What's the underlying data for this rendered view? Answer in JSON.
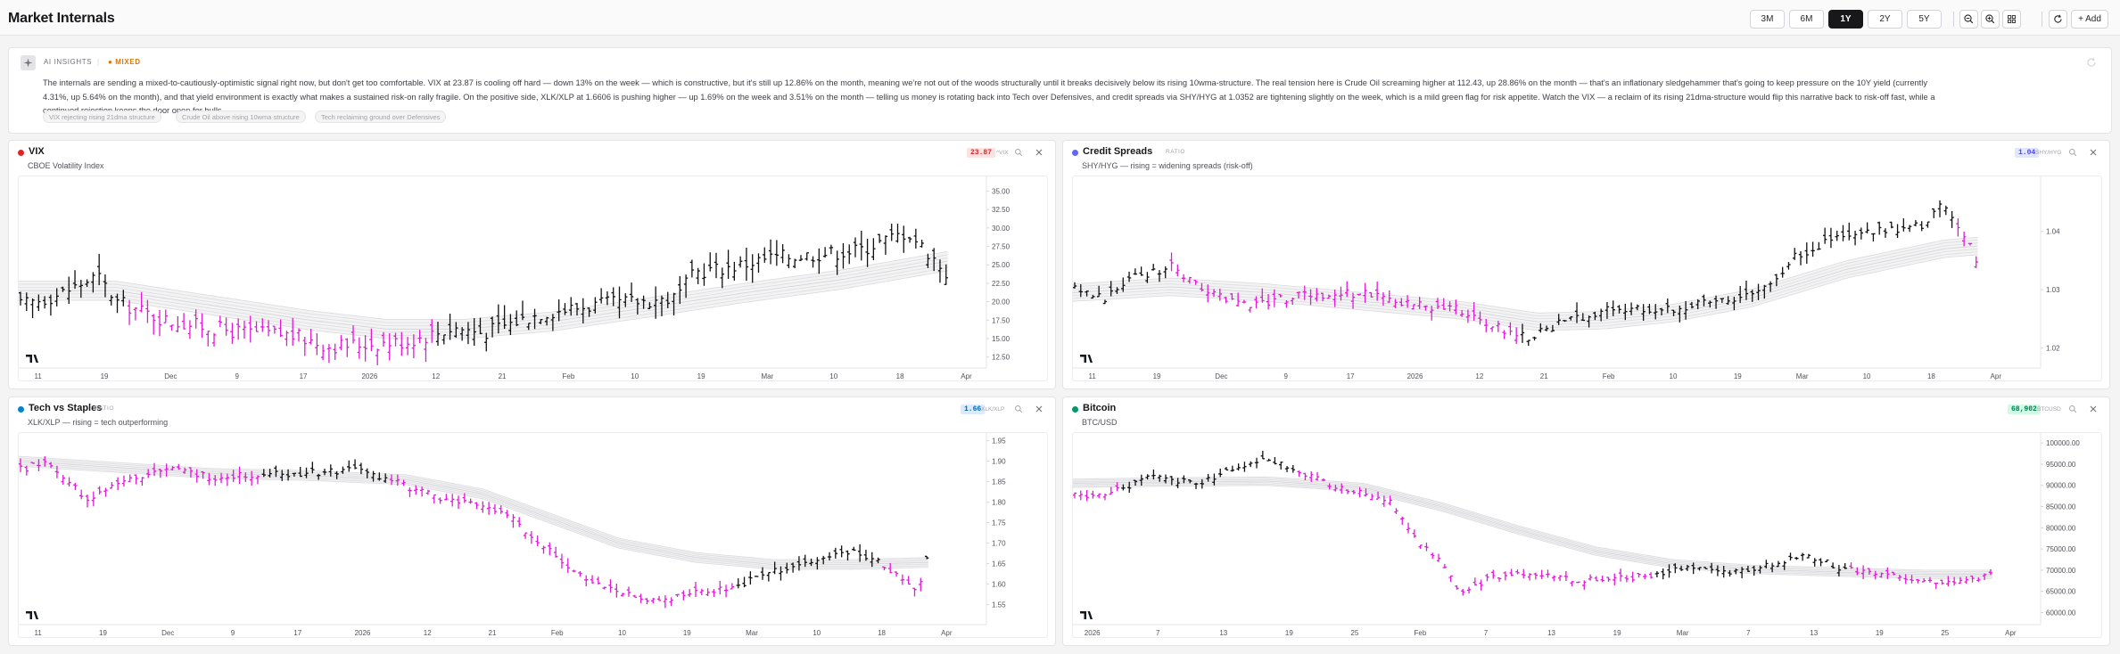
{
  "header": {
    "title": "Market Internals",
    "ranges": [
      "3M",
      "6M",
      "1Y",
      "2Y",
      "5Y"
    ],
    "active_range": "1Y",
    "add_label": "+ Add"
  },
  "insights": {
    "label": "AI INSIGHTS",
    "separator": "|",
    "mixed": "● MIXED",
    "text": "The internals are sending a mixed-to-cautiously-optimistic signal right now, but don't get too comfortable. VIX at 23.87 is cooling off hard — down 13% on the week — which is constructive, but it's still up 12.86% on the month, meaning we're not out of the woods structurally until it breaks decisively below its rising 10wma-structure. The real tension here is Crude Oil screaming higher at 112.43, up 28.86% on the month — that's an inflationary sledgehammer that's going to keep pressure on the 10Y yield (currently 4.31%, up 5.64% on the month), and that yield environment is exactly what makes a sustained risk-on rally fragile. On the positive side, XLK/XLP at 1.6606 is pushing higher — up 1.69% on the week and 3.51% on the month — telling us money is rotating back into Tech over Defensives, and credit spreads via SHY/HYG at 1.0352 are tightening slightly on the week, which is a mild green flag for risk appetite. Watch the VIX — a reclaim of its rising 21dma-structure would flip this narrative back to risk-off fast, while a continued rejection keeps the door open for bulls.",
    "chips": [
      "VIX rejecting rising 21dma structure",
      "Crude Oil above rising 10wma structure",
      "Tech reclaiming ground over Defensives"
    ]
  },
  "panels": [
    {
      "id": "vix",
      "title": "VIX",
      "tag": "",
      "subtitle": "CBOE Volatility Index",
      "value": "23.87",
      "symbol": "^VIX",
      "color": "#dc2626",
      "badge_bg": "#fee2e2",
      "x_labels": [
        "11",
        "19",
        "Dec",
        "9",
        "17",
        "2026",
        "12",
        "21",
        "Feb",
        "10",
        "19",
        "Mar",
        "10",
        "18",
        "Apr"
      ],
      "y_labels": [
        "35.00",
        "32.50",
        "30.00",
        "27.50",
        "25.00",
        "22.50",
        "20.00",
        "17.50",
        "15.00",
        "12.50"
      ],
      "y_range": [
        11.5,
        36.5
      ],
      "anchors": [
        [
          0,
          19.5
        ],
        [
          0.04,
          21
        ],
        [
          0.08,
          23.5
        ],
        [
          0.1,
          20
        ],
        [
          0.15,
          17.5
        ],
        [
          0.22,
          16
        ],
        [
          0.28,
          15.5
        ],
        [
          0.32,
          14
        ],
        [
          0.4,
          14.6
        ],
        [
          0.45,
          16.5
        ],
        [
          0.48,
          15.8
        ],
        [
          0.54,
          18.5
        ],
        [
          0.6,
          19.6
        ],
        [
          0.68,
          20.5
        ],
        [
          0.7,
          24
        ],
        [
          0.74,
          24.8
        ],
        [
          0.78,
          26
        ],
        [
          0.83,
          26.5
        ],
        [
          0.87,
          27
        ],
        [
          0.9,
          28.5
        ],
        [
          0.92,
          29.5
        ],
        [
          0.95,
          25.5
        ],
        [
          0.96,
          23.9
        ]
      ],
      "ma_anchors": [
        [
          0,
          21.5
        ],
        [
          0.1,
          21.5
        ],
        [
          0.2,
          19.5
        ],
        [
          0.3,
          17.5
        ],
        [
          0.38,
          16.3
        ],
        [
          0.46,
          16.3
        ],
        [
          0.55,
          17.3
        ],
        [
          0.65,
          19.2
        ],
        [
          0.75,
          21.2
        ],
        [
          0.85,
          23
        ],
        [
          0.96,
          25.5
        ]
      ],
      "ma_spread": 1.3,
      "vol": 2.8,
      "magenta_ranges": [
        [
          0.11,
          0.43
        ]
      ]
    },
    {
      "id": "credit",
      "title": "Credit Spreads",
      "tag": "RATIO",
      "subtitle": "SHY/HYG — rising = widening spreads (risk-off)",
      "value": "1.04",
      "symbol": "SHY/HYG",
      "color": "#6366f1",
      "badge_bg": "#e0e7ff",
      "x_labels": [
        "11",
        "19",
        "Dec",
        "9",
        "17",
        "2026",
        "12",
        "21",
        "Feb",
        "10",
        "19",
        "Mar",
        "10",
        "18",
        "Apr"
      ],
      "y_labels": [
        "1.04",
        "1.03",
        "1.02"
      ],
      "y_range": [
        1.0172,
        1.0488
      ],
      "anchors": [
        [
          0,
          1.03
        ],
        [
          0.03,
          1.0285
        ],
        [
          0.06,
          1.032
        ],
        [
          0.1,
          1.034
        ],
        [
          0.13,
          1.03
        ],
        [
          0.18,
          1.0275
        ],
        [
          0.24,
          1.029
        ],
        [
          0.3,
          1.0295
        ],
        [
          0.35,
          1.0275
        ],
        [
          0.4,
          1.0265
        ],
        [
          0.44,
          1.0235
        ],
        [
          0.47,
          1.022
        ],
        [
          0.5,
          1.024
        ],
        [
          0.55,
          1.0265
        ],
        [
          0.62,
          1.0268
        ],
        [
          0.68,
          1.0285
        ],
        [
          0.72,
          1.031
        ],
        [
          0.75,
          1.036
        ],
        [
          0.79,
          1.039
        ],
        [
          0.84,
          1.04
        ],
        [
          0.88,
          1.041
        ],
        [
          0.9,
          1.0445
        ],
        [
          0.92,
          1.04
        ],
        [
          0.93,
          1.037
        ],
        [
          0.935,
          1.0352
        ]
      ],
      "ma_anchors": [
        [
          0,
          1.0295
        ],
        [
          0.1,
          1.0305
        ],
        [
          0.2,
          1.0295
        ],
        [
          0.3,
          1.028
        ],
        [
          0.4,
          1.0265
        ],
        [
          0.48,
          1.0245
        ],
        [
          0.55,
          1.0248
        ],
        [
          0.62,
          1.026
        ],
        [
          0.7,
          1.0285
        ],
        [
          0.8,
          1.0335
        ],
        [
          0.9,
          1.037
        ],
        [
          0.935,
          1.0375
        ]
      ],
      "ma_spread": 0.0015,
      "vol": 0.0022,
      "magenta_ranges": [
        [
          0.1,
          0.46
        ],
        [
          0.91,
          0.94
        ]
      ]
    },
    {
      "id": "tech",
      "title": "Tech vs Staples",
      "tag": "RATIO",
      "subtitle": "XLK/XLP — rising = tech outperforming",
      "value": "1.66",
      "symbol": "XLK/XLP",
      "color": "#0284c7",
      "badge_bg": "#dbeafe",
      "x_labels": [
        "11",
        "19",
        "Dec",
        "9",
        "17",
        "2026",
        "12",
        "21",
        "Feb",
        "10",
        "19",
        "Mar",
        "10",
        "18",
        "Apr"
      ],
      "y_labels": [
        "1.95",
        "1.90",
        "1.85",
        "1.80",
        "1.75",
        "1.70",
        "1.65",
        "1.60",
        "1.55"
      ],
      "y_range": [
        1.51,
        1.96
      ],
      "anchors": [
        [
          0,
          1.88
        ],
        [
          0.03,
          1.9
        ],
        [
          0.07,
          1.8
        ],
        [
          0.1,
          1.85
        ],
        [
          0.15,
          1.88
        ],
        [
          0.2,
          1.86
        ],
        [
          0.25,
          1.87
        ],
        [
          0.3,
          1.87
        ],
        [
          0.35,
          1.88
        ],
        [
          0.4,
          1.84
        ],
        [
          0.45,
          1.8
        ],
        [
          0.5,
          1.78
        ],
        [
          0.54,
          1.7
        ],
        [
          0.57,
          1.63
        ],
        [
          0.62,
          1.58
        ],
        [
          0.66,
          1.56
        ],
        [
          0.7,
          1.58
        ],
        [
          0.74,
          1.59
        ],
        [
          0.78,
          1.63
        ],
        [
          0.82,
          1.65
        ],
        [
          0.86,
          1.68
        ],
        [
          0.89,
          1.66
        ],
        [
          0.92,
          1.6
        ],
        [
          0.93,
          1.58
        ],
        [
          0.94,
          1.66
        ]
      ],
      "ma_anchors": [
        [
          0,
          1.9
        ],
        [
          0.1,
          1.885
        ],
        [
          0.2,
          1.87
        ],
        [
          0.3,
          1.865
        ],
        [
          0.4,
          1.855
        ],
        [
          0.48,
          1.82
        ],
        [
          0.55,
          1.76
        ],
        [
          0.62,
          1.7
        ],
        [
          0.7,
          1.665
        ],
        [
          0.78,
          1.648
        ],
        [
          0.86,
          1.648
        ],
        [
          0.94,
          1.653
        ]
      ],
      "ma_spread": 0.012,
      "vol": 0.025,
      "magenta_ranges": [
        [
          0.0,
          0.25
        ],
        [
          0.38,
          0.74
        ],
        [
          0.89,
          0.935
        ]
      ]
    },
    {
      "id": "btc",
      "title": "Bitcoin",
      "tag": "",
      "subtitle": "BTC/USD",
      "value": "68,902",
      "symbol": "BTCUSD",
      "color": "#059669",
      "badge_bg": "#d1fae5",
      "x_labels": [
        "2026",
        "7",
        "13",
        "19",
        "25",
        "Feb",
        "7",
        "13",
        "19",
        "Mar",
        "7",
        "13",
        "19",
        "25",
        "Apr"
      ],
      "y_labels": [
        "100000.00",
        "95000.00",
        "90000.00",
        "85000.00",
        "80000.00",
        "75000.00",
        "70000.00",
        "65000.00",
        "60000.00"
      ],
      "y_range": [
        58000,
        101500
      ],
      "anchors": [
        [
          0,
          87500
        ],
        [
          0.04,
          88500
        ],
        [
          0.08,
          92000
        ],
        [
          0.13,
          90500
        ],
        [
          0.17,
          94500
        ],
        [
          0.2,
          96500
        ],
        [
          0.23,
          93500
        ],
        [
          0.27,
          89500
        ],
        [
          0.31,
          88000
        ],
        [
          0.33,
          86000
        ],
        [
          0.35,
          78000
        ],
        [
          0.38,
          72000
        ],
        [
          0.4,
          64000
        ],
        [
          0.43,
          68000
        ],
        [
          0.47,
          69500
        ],
        [
          0.52,
          67500
        ],
        [
          0.57,
          68000
        ],
        [
          0.6,
          69000
        ],
        [
          0.64,
          71000
        ],
        [
          0.68,
          69500
        ],
        [
          0.72,
          71000
        ],
        [
          0.76,
          73500
        ],
        [
          0.8,
          70000
        ],
        [
          0.84,
          69500
        ],
        [
          0.88,
          67500
        ],
        [
          0.92,
          67000
        ],
        [
          0.95,
          68900
        ]
      ],
      "ma_anchors": [
        [
          0,
          90500
        ],
        [
          0.1,
          90800
        ],
        [
          0.2,
          91000
        ],
        [
          0.3,
          89500
        ],
        [
          0.38,
          85000
        ],
        [
          0.46,
          79500
        ],
        [
          0.54,
          74500
        ],
        [
          0.62,
          71500
        ],
        [
          0.7,
          70200
        ],
        [
          0.8,
          69500
        ],
        [
          0.88,
          69000
        ],
        [
          0.95,
          69000
        ]
      ],
      "ma_spread": 1000,
      "vol": 2000,
      "magenta_ranges": [
        [
          0.0,
          0.05
        ],
        [
          0.23,
          0.6
        ],
        [
          0.8,
          0.95
        ]
      ]
    }
  ]
}
